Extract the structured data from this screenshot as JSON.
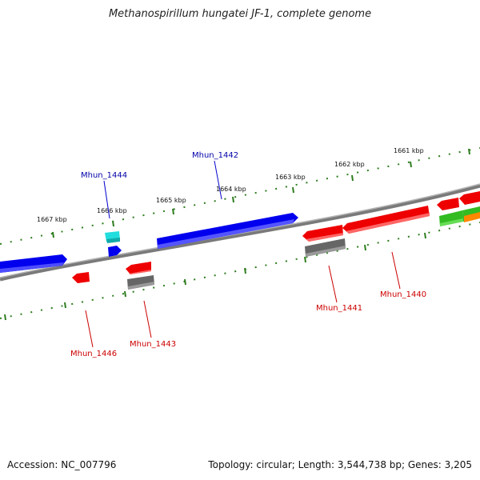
{
  "title": "Methanospirillum hungatei JF-1, complete genome",
  "footer": {
    "accession": "Accession: NC_007796",
    "topology": "Topology: circular; Length: 3,544,738 bp; Genes: 3,205"
  },
  "colors": {
    "backbone": "#8a8a8a",
    "scale_ticks": "#2e7d1f",
    "forward_gene": "#0000ee",
    "reverse_gene": "#ee0000",
    "highlight_gene": "#22dddd",
    "pseudo_gene": "#6b6b6b",
    "green_gene": "#33bb22",
    "orange_gene": "#ff8800",
    "forward_label": "#0000aa",
    "reverse_label": "#cc0000"
  },
  "scale_labels": [
    "1667 kbp",
    "1666 kbp",
    "1665 kbp",
    "1664 kbp",
    "1663 kbp",
    "1662 kbp",
    "1661 kbp"
  ],
  "gene_labels": {
    "forward": [
      "Mhun_1444",
      "Mhun_1442"
    ],
    "reverse": [
      "Mhun_1446",
      "Mhun_1443",
      "Mhun_1441",
      "Mhun_1440"
    ]
  }
}
